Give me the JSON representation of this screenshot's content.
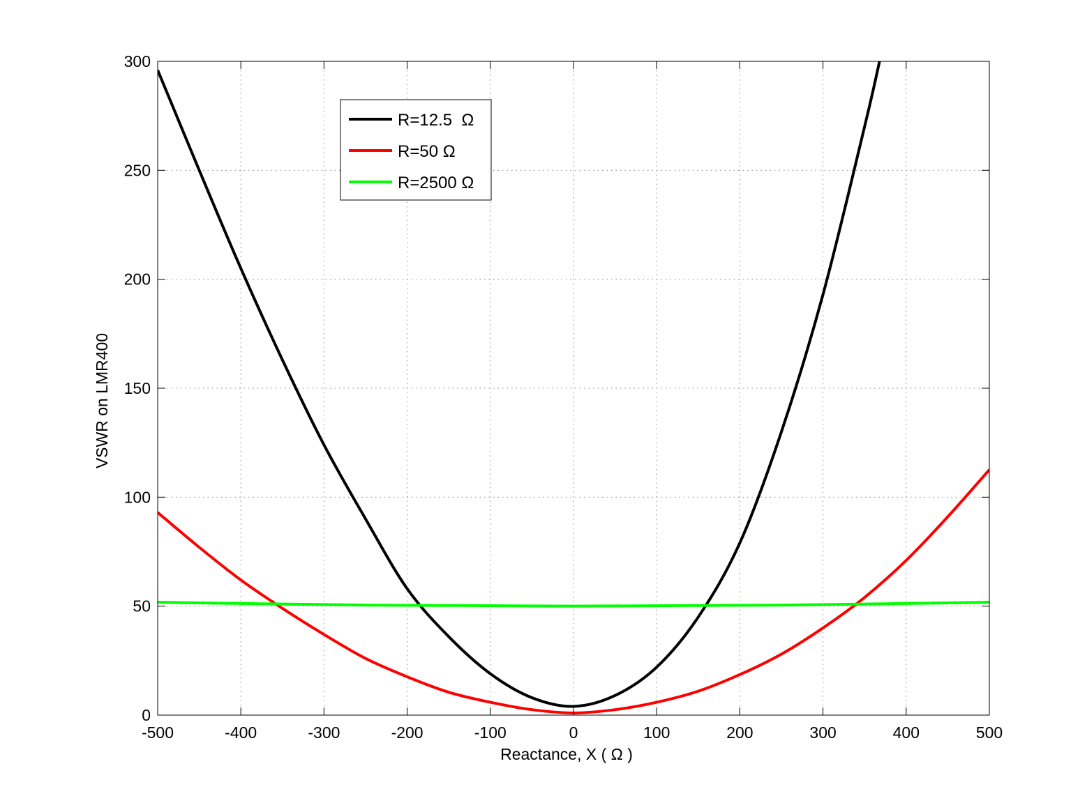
{
  "chart_data": {
    "type": "line",
    "title": "",
    "xlabel": "Reactance, X ( Ω )",
    "ylabel": "VSWR on LMR400",
    "xlim": [
      -500,
      500
    ],
    "ylim": [
      0,
      300
    ],
    "xticks": [
      "-500",
      "-400",
      "-300",
      "-200",
      "-100",
      "0",
      "100",
      "200",
      "300",
      "400",
      "500"
    ],
    "yticks": [
      "0",
      "50",
      "100",
      "150",
      "200",
      "250",
      "300"
    ],
    "grid": true,
    "legend_position": "top-left",
    "series": [
      {
        "name": "R=12.5  Ω",
        "color": "#000000",
        "x": [
          -500,
          -450,
          -400,
          -350,
          -300,
          -250,
          -200,
          -150,
          -100,
          -50,
          0,
          50,
          100,
          150,
          200,
          250,
          300,
          350,
          368
        ],
        "y": [
          296,
          250,
          205,
          163,
          124,
          90,
          58,
          36,
          19,
          8,
          4,
          9,
          22,
          45,
          79,
          130,
          193,
          270,
          300
        ]
      },
      {
        "name": "R=50 Ω",
        "color": "#ff0000",
        "x": [
          -500,
          -450,
          -400,
          -350,
          -300,
          -250,
          -200,
          -150,
          -100,
          -50,
          0,
          50,
          100,
          150,
          200,
          250,
          300,
          350,
          400,
          450,
          500
        ],
        "y": [
          93,
          77,
          62,
          49,
          37,
          26,
          17.6,
          10.5,
          5.9,
          2.5,
          1,
          2.5,
          5.9,
          11,
          18.6,
          28,
          40,
          54,
          71,
          91,
          112.6
        ]
      },
      {
        "name": "R=2500 Ω",
        "color": "#00ff00",
        "x": [
          -500,
          -250,
          0,
          250,
          500
        ],
        "y": [
          51.8,
          50.5,
          50.0,
          50.5,
          51.8
        ]
      }
    ]
  }
}
